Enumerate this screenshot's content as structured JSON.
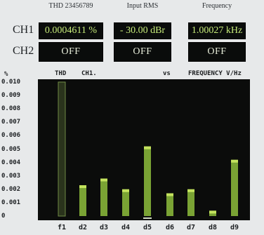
{
  "header": {
    "thd_title": "THD 23456789",
    "rms_title": "Input RMS",
    "freq_title": "Frequency"
  },
  "rows": {
    "ch1_label": "CH1",
    "ch2_label": "CH2"
  },
  "readings": {
    "ch1_thd": "0.0004611 %",
    "ch1_rms": "- 30.00 dBr",
    "ch1_freq": "1.00027 kHz",
    "ch2_thd": "OFF",
    "ch2_rms": "OFF",
    "ch2_freq": "OFF"
  },
  "chart_labels": {
    "unit": "%",
    "title_left": "THD",
    "title_channel": "CH1.",
    "title_vs": "vs",
    "title_right": "FREQUENCY V/Hz"
  },
  "chart_data": {
    "type": "bar",
    "categories": [
      "f1",
      "d2",
      "d3",
      "d4",
      "d5",
      "d6",
      "d7",
      "d8",
      "d9"
    ],
    "values": [
      0.01,
      0.0023,
      0.0028,
      0.002,
      0.0052,
      0.0017,
      0.002,
      0.0004,
      0.0042
    ],
    "ylim": [
      0,
      0.01
    ],
    "yticks": [
      "0",
      "0.001",
      "0.002",
      "0.003",
      "0.004",
      "0.005",
      "0.006",
      "0.007",
      "0.008",
      "0.009",
      "0.010"
    ],
    "grid": false
  },
  "colors": {
    "bar_fill": "#7aa334",
    "bar_highlight": "#c4e35e",
    "bar_fundamental": "#2a331c",
    "plot_bg": "#0b0c0b"
  }
}
